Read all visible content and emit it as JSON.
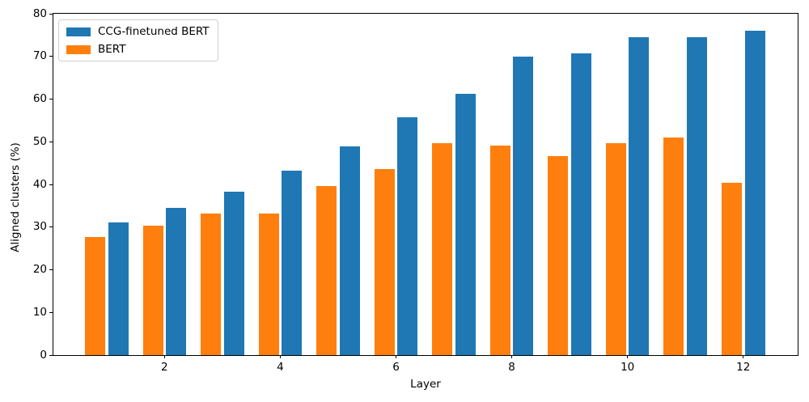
{
  "figure": {
    "background": "#ffffff",
    "xlabel": "Layer",
    "ylabel": "Aligned clusters (%)"
  },
  "legend": {
    "position": "upper left",
    "items": [
      {
        "label": "CCG-finetuned BERT",
        "color": "#1f77b4"
      },
      {
        "label": "BERT",
        "color": "#ff7f0e"
      }
    ]
  },
  "chart_data": {
    "type": "bar",
    "title": "",
    "xlabel": "Layer",
    "ylabel": "Aligned clusters (%)",
    "categories": [
      1,
      2,
      3,
      4,
      5,
      6,
      7,
      8,
      9,
      10,
      11,
      12
    ],
    "series": [
      {
        "name": "BERT",
        "color": "#ff7f0e",
        "offset": -0.2,
        "values": [
          27.7,
          30.4,
          33.2,
          33.2,
          39.6,
          43.6,
          49.7,
          49.1,
          46.7,
          49.7,
          51.0,
          40.4
        ]
      },
      {
        "name": "CCG-finetuned BERT",
        "color": "#1f77b4",
        "offset": 0.2,
        "values": [
          31.1,
          34.5,
          38.3,
          43.3,
          48.9,
          55.7,
          61.2,
          69.9,
          70.8,
          74.5,
          74.6,
          76.1
        ]
      }
    ],
    "bar_width": 0.35,
    "ylim": [
      0,
      80
    ],
    "yticks": [
      0,
      10,
      20,
      30,
      40,
      50,
      60,
      70,
      80
    ],
    "xticks": [
      2,
      4,
      6,
      8,
      10,
      12
    ],
    "grid": false,
    "legend_position": "upper left"
  }
}
